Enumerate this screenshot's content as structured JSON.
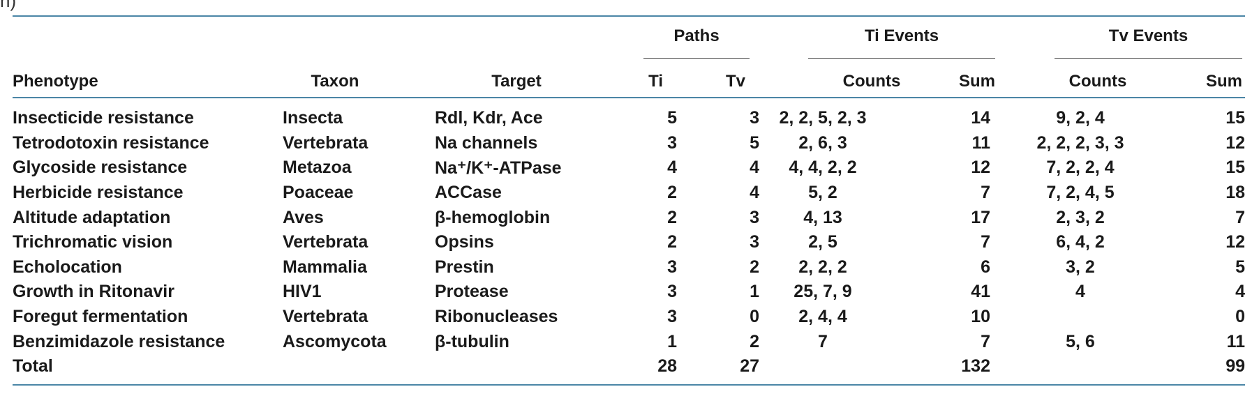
{
  "caption_fragment": "n)",
  "groups": {
    "paths": "Paths",
    "ti_events": "Ti Events",
    "tv_events": "Tv Events"
  },
  "columns": {
    "phenotype": "Phenotype",
    "taxon": "Taxon",
    "target": "Target",
    "ti": "Ti",
    "tv": "Tv",
    "ti_counts": "Counts",
    "ti_sum": "Sum",
    "tv_counts": "Counts",
    "tv_sum": "Sum"
  },
  "rows": [
    {
      "phenotype": "Insecticide resistance",
      "taxon": "Insecta",
      "target": "Rdl, Kdr, Ace",
      "ti": "5",
      "tv": "3",
      "ti_counts": "2, 2, 5, 2, 3",
      "ti_sum": "14",
      "tv_counts": "9, 2, 4",
      "tv_sum": "15"
    },
    {
      "phenotype": "Tetrodotoxin resistance",
      "taxon": "Vertebrata",
      "target": "Na channels",
      "ti": "3",
      "tv": "5",
      "ti_counts": "2, 6, 3",
      "ti_sum": "11",
      "tv_counts": "2, 2, 2, 3, 3",
      "tv_sum": "12"
    },
    {
      "phenotype": "Glycoside resistance",
      "taxon": "Metazoa",
      "target": "Na⁺/K⁺-ATPase",
      "ti": "4",
      "tv": "4",
      "ti_counts": "4, 4, 2, 2",
      "ti_sum": "12",
      "tv_counts": "7, 2, 2, 4",
      "tv_sum": "15"
    },
    {
      "phenotype": "Herbicide resistance",
      "taxon": "Poaceae",
      "target": "ACCase",
      "ti": "2",
      "tv": "4",
      "ti_counts": "5, 2",
      "ti_sum": "7",
      "tv_counts": "7, 2, 4, 5",
      "tv_sum": "18"
    },
    {
      "phenotype": "Altitude adaptation",
      "taxon": "Aves",
      "target": "β-hemoglobin",
      "ti": "2",
      "tv": "3",
      "ti_counts": "4, 13",
      "ti_sum": "17",
      "tv_counts": "2, 3, 2",
      "tv_sum": "7"
    },
    {
      "phenotype": "Trichromatic vision",
      "taxon": "Vertebrata",
      "target": "Opsins",
      "ti": "2",
      "tv": "3",
      "ti_counts": "2, 5",
      "ti_sum": "7",
      "tv_counts": "6, 4, 2",
      "tv_sum": "12"
    },
    {
      "phenotype": "Echolocation",
      "taxon": "Mammalia",
      "target": "Prestin",
      "ti": "3",
      "tv": "2",
      "ti_counts": "2, 2, 2",
      "ti_sum": "6",
      "tv_counts": "3, 2",
      "tv_sum": "5"
    },
    {
      "phenotype": "Growth in Ritonavir",
      "taxon": "HIV1",
      "target": "Protease",
      "ti": "3",
      "tv": "1",
      "ti_counts": "25, 7, 9",
      "ti_sum": "41",
      "tv_counts": "4",
      "tv_sum": "4"
    },
    {
      "phenotype": "Foregut fermentation",
      "taxon": "Vertebrata",
      "target": "Ribonucleases",
      "ti": "3",
      "tv": "0",
      "ti_counts": "2, 4, 4",
      "ti_sum": "10",
      "tv_counts": "",
      "tv_sum": "0"
    },
    {
      "phenotype": "Benzimidazole resistance",
      "taxon": "Ascomycota",
      "target": "β-tubulin",
      "ti": "1",
      "tv": "2",
      "ti_counts": "7",
      "ti_sum": "7",
      "tv_counts": "5, 6",
      "tv_sum": "11"
    }
  ],
  "total": {
    "label": "Total",
    "ti": "28",
    "tv": "27",
    "ti_sum": "132",
    "tv_sum": "99"
  },
  "colors": {
    "rule": "#4b86a6",
    "text": "#1a1a1a"
  }
}
